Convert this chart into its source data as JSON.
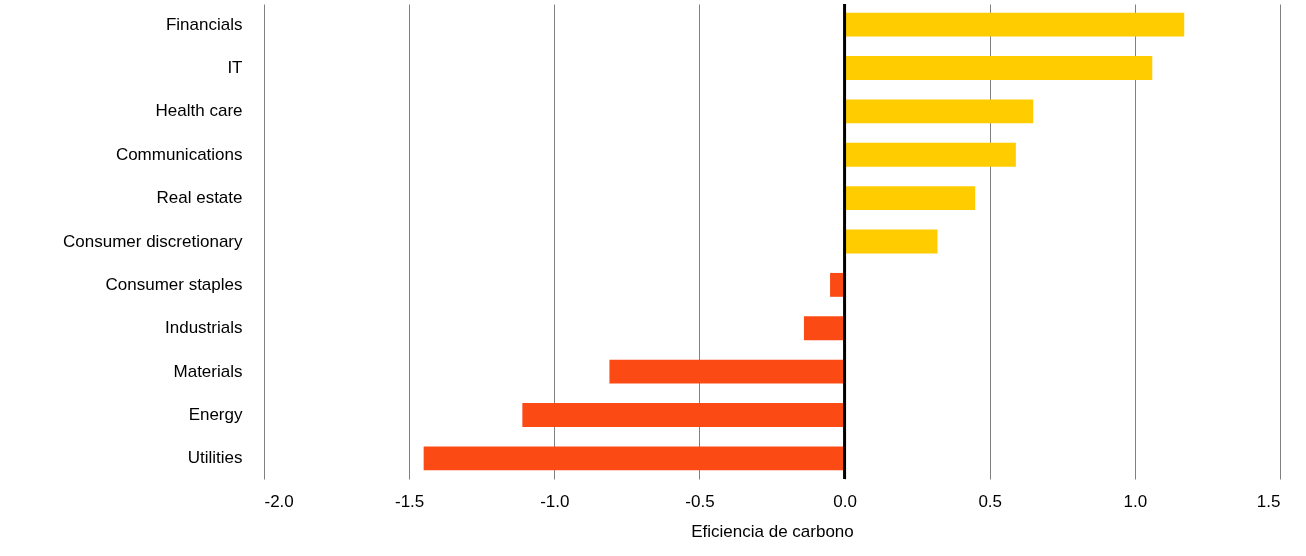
{
  "chart_data": {
    "type": "bar",
    "orientation": "horizontal",
    "xlabel": "Eficiencia de carbono",
    "categories": [
      "Financials",
      "IT",
      "Health care",
      "Communications",
      "Real estate",
      "Consumer discretionary",
      "Consumer staples",
      "Industrials",
      "Materials",
      "Energy",
      "Utilities"
    ],
    "values": [
      1.17,
      1.06,
      0.65,
      0.59,
      0.45,
      0.32,
      -0.05,
      -0.14,
      -0.81,
      -1.11,
      -1.45
    ],
    "colors": [
      "#ffcc00",
      "#ffcc00",
      "#ffcc00",
      "#ffcc00",
      "#ffcc00",
      "#ffcc00",
      "#fc4a15",
      "#fc4a15",
      "#fc4a15",
      "#fc4a15",
      "#fc4a15"
    ],
    "xlim": [
      -2.0,
      1.5
    ],
    "xticks": [
      {
        "value": -2,
        "label": "-2.0"
      },
      {
        "value": -1.5,
        "label": "-1.5"
      },
      {
        "value": -1,
        "label": "-1.0"
      },
      {
        "value": -0.5,
        "label": "-0.5"
      },
      {
        "value": 0,
        "label": "0.0"
      },
      {
        "value": 0.5,
        "label": "0.5"
      },
      {
        "value": 1,
        "label": "1.0"
      },
      {
        "value": 1.5,
        "label": "1.5"
      }
    ],
    "grid": "x",
    "ref_lines": [
      {
        "axis": "x",
        "value": 0,
        "color": "#000000"
      }
    ]
  }
}
